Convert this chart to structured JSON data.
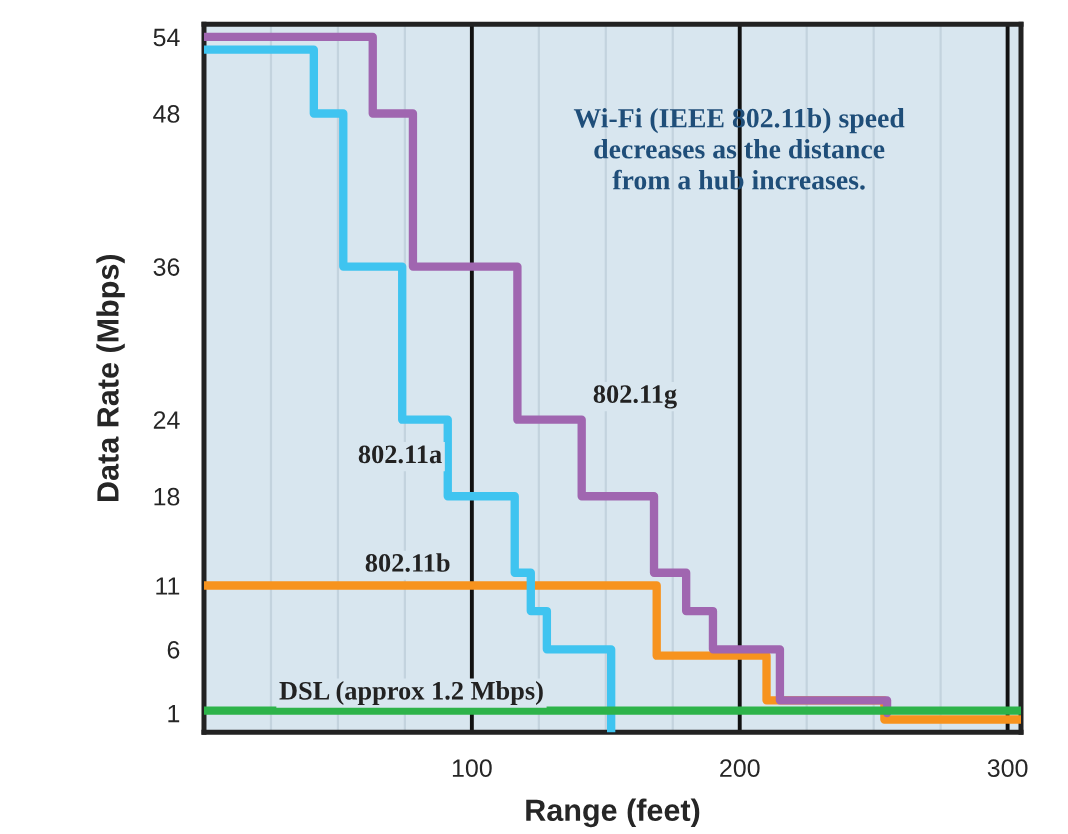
{
  "chart_data": {
    "type": "step",
    "xlabel": "Range (feet)",
    "ylabel": "Data Rate (Mbps)",
    "xlim": [
      0,
      305
    ],
    "ylim": [
      -0.5,
      55
    ],
    "xticks": [
      {
        "value": 25,
        "label": null
      },
      {
        "value": 50,
        "label": null
      },
      {
        "value": 75,
        "label": null
      },
      100,
      {
        "value": 125,
        "label": null
      },
      {
        "value": 150,
        "label": null
      },
      {
        "value": 175,
        "label": null
      },
      200,
      {
        "value": 225,
        "label": null
      },
      {
        "value": 250,
        "label": null
      },
      {
        "value": 275,
        "label": null
      },
      300
    ],
    "yticks": [
      1,
      6,
      11,
      18,
      24,
      36,
      48,
      54
    ],
    "grid": "x",
    "legend": false,
    "line_style": "solid",
    "marker": "none",
    "series": [
      {
        "name": "802.11a",
        "color": "#3fc4f0",
        "x": [
          0,
          41,
          52,
          74,
          91,
          116,
          122,
          128,
          152
        ],
        "values": [
          53,
          48,
          36,
          24,
          18,
          12,
          9,
          6,
          -0.5
        ]
      },
      {
        "name": "802.11g",
        "color": "#a066b0",
        "x": [
          0,
          63,
          78,
          117,
          141,
          168,
          180,
          190,
          215,
          255
        ],
        "values": [
          54,
          48,
          36,
          24,
          18,
          12,
          9,
          6,
          2,
          1
        ]
      },
      {
        "name": "802.11b",
        "color": "#f7931e",
        "x": [
          0,
          169,
          210,
          254,
          305
        ],
        "values": [
          11,
          5.5,
          2,
          0.5,
          0.5
        ]
      },
      {
        "name": "DSL (approx 1.2 Mbps)",
        "color": "#2db34a",
        "x": [
          0,
          305
        ],
        "values": [
          1.2,
          1.2
        ]
      }
    ],
    "annotations": [
      "Wi-Fi (IEEE 802.11b) speed\ndecreases as the distance\nfrom a hub increases."
    ]
  }
}
